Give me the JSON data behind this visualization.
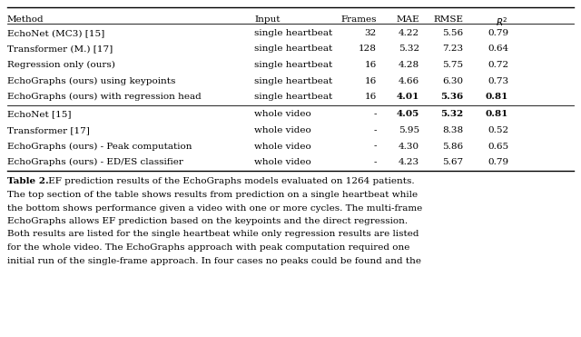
{
  "headers": [
    "Method",
    "Input",
    "Frames",
    "MAE",
    "RMSE",
    "R2"
  ],
  "section1": [
    {
      "method": "EchoNet (MC3) [15]",
      "input": "single heartbeat",
      "frames": "32",
      "mae": "4.22",
      "rmse": "5.56",
      "r2": "0.79",
      "bold": []
    },
    {
      "method": "Transformer (M.) [17]",
      "input": "single heartbeat",
      "frames": "128",
      "mae": "5.32",
      "rmse": "7.23",
      "r2": "0.64",
      "bold": []
    },
    {
      "method": "Regression only (ours)",
      "input": "single heartbeat",
      "frames": "16",
      "mae": "4.28",
      "rmse": "5.75",
      "r2": "0.72",
      "bold": []
    },
    {
      "method": "EchoGraphs (ours) using keypoints",
      "input": "single heartbeat",
      "frames": "16",
      "mae": "4.66",
      "rmse": "6.30",
      "r2": "0.73",
      "bold": []
    },
    {
      "method": "EchoGraphs (ours) with regression head",
      "input": "single heartbeat",
      "frames": "16",
      "mae": "4.01",
      "rmse": "5.36",
      "r2": "0.81",
      "bold": [
        "mae",
        "rmse",
        "r2"
      ]
    }
  ],
  "section2": [
    {
      "method": "EchoNet [15]",
      "input": "whole video",
      "frames": "-",
      "mae": "4.05",
      "rmse": "5.32",
      "r2": "0.81",
      "bold": [
        "mae",
        "rmse",
        "r2"
      ]
    },
    {
      "method": "Transformer [17]",
      "input": "whole video",
      "frames": "-",
      "mae": "5.95",
      "rmse": "8.38",
      "r2": "0.52",
      "bold": []
    },
    {
      "method": "EchoGraphs (ours) - Peak computation",
      "input": "whole video",
      "frames": "-",
      "mae": "4.30",
      "rmse": "5.86",
      "r2": "0.65",
      "bold": []
    },
    {
      "method": "EchoGraphs (ours) - ED/ES classifier",
      "input": "whole video",
      "frames": "-",
      "mae": "4.23",
      "rmse": "5.67",
      "r2": "0.79",
      "bold": []
    }
  ],
  "caption_bold": "Table 2.",
  "caption_lines": [
    " EF prediction results of the EchoGraphs models evaluated on 1264 patients.",
    "The top section of the table shows results from prediction on a single heartbeat while",
    "the bottom shows performance given a video with one or more cycles. The multi-frame",
    "EchoGraphs allows EF prediction based on the keypoints and the direct regression.",
    "Both results are listed for the single heartbeat while only regression results are listed",
    "for the whole video. The EchoGraphs approach with peak computation required one",
    "initial run of the single-frame approach. In four cases no peaks could be found and the"
  ],
  "font_size": 7.5,
  "caption_font_size": 7.5,
  "bg_color": "#ffffff"
}
